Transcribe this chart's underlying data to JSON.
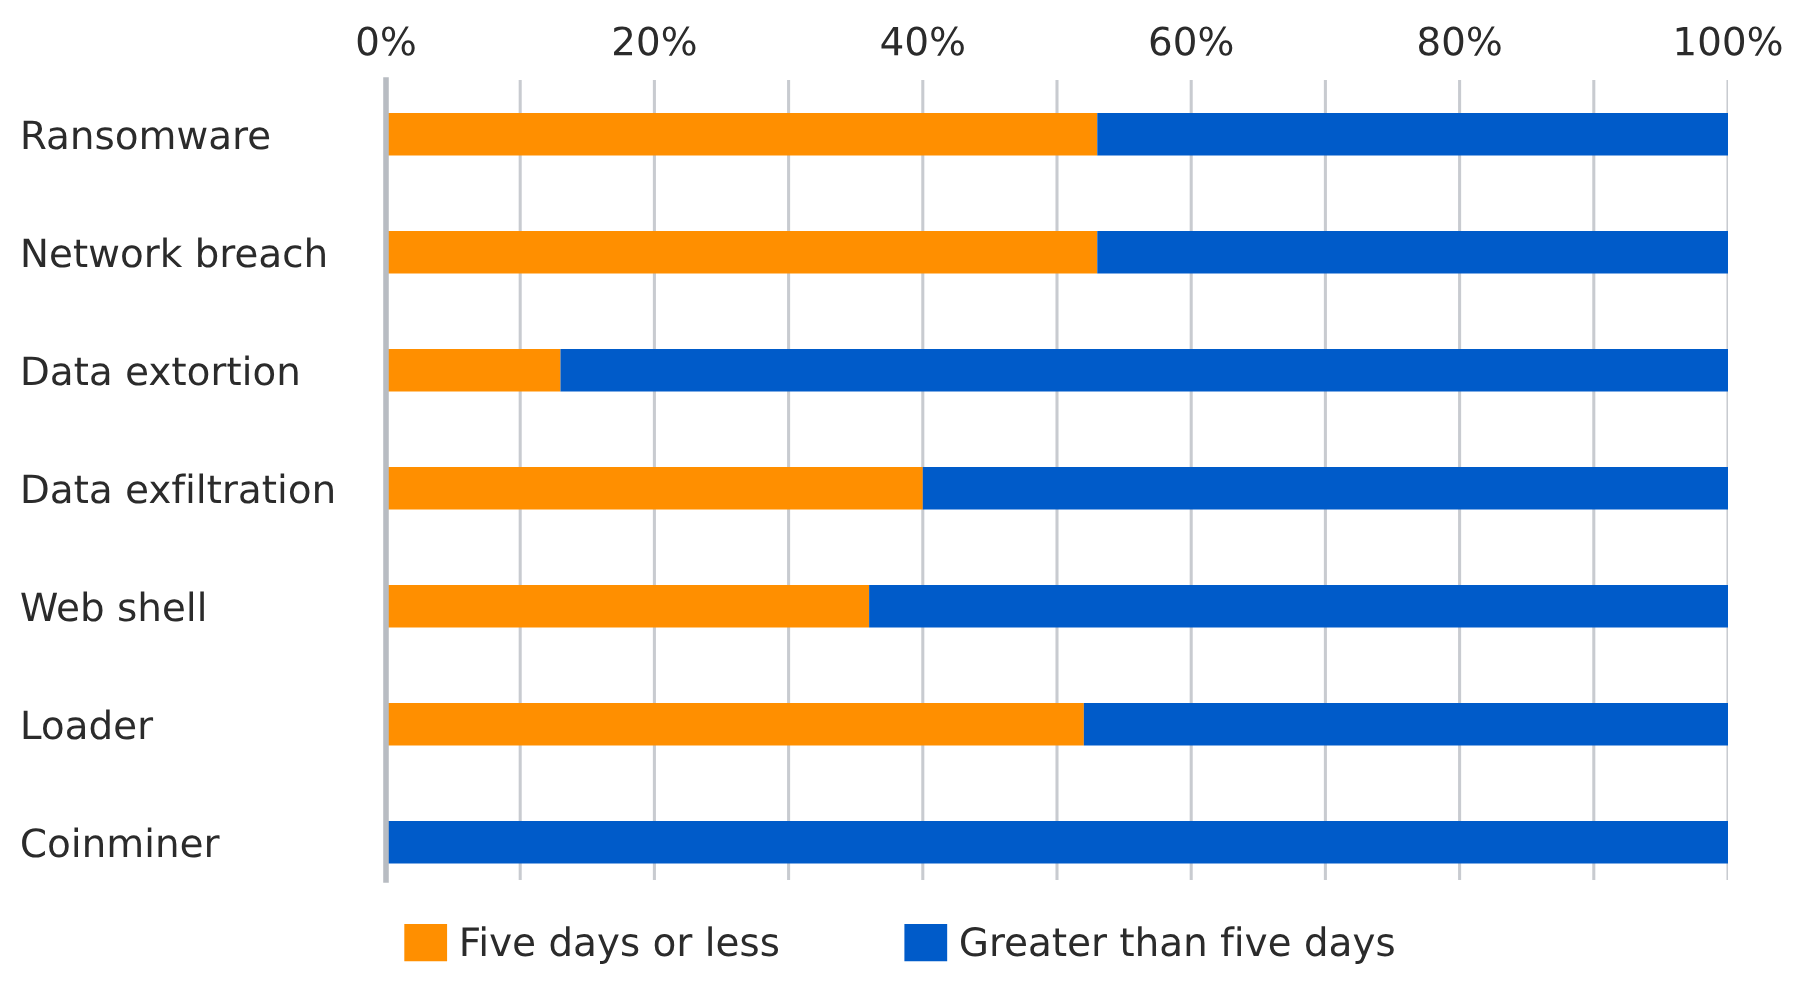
{
  "chart_data": {
    "type": "bar",
    "orientation": "horizontal",
    "stacked": true,
    "categories": [
      "Ransomware",
      "Network breach",
      "Data extortion",
      "Data exfiltration",
      "Web shell",
      "Loader",
      "Coinminer"
    ],
    "series": [
      {
        "name": "Five days or less",
        "color": "#ff8f00",
        "values": [
          53,
          53,
          13,
          40,
          36,
          52,
          0
        ]
      },
      {
        "name": "Greater than five days",
        "color": "#005bc9",
        "values": [
          47,
          47,
          87,
          60,
          64,
          48,
          100
        ]
      }
    ],
    "xlim": [
      0,
      100
    ],
    "xticks": [
      {
        "value": 0,
        "label": "0%"
      },
      {
        "value": 10,
        "label": null
      },
      {
        "value": 20,
        "label": "20%"
      },
      {
        "value": 30,
        "label": null
      },
      {
        "value": 40,
        "label": "40%"
      },
      {
        "value": 50,
        "label": null
      },
      {
        "value": 60,
        "label": "60%"
      },
      {
        "value": 70,
        "label": null
      },
      {
        "value": 80,
        "label": "80%"
      },
      {
        "value": 90,
        "label": null
      },
      {
        "value": 100,
        "label": "100%"
      }
    ],
    "grid": "x",
    "legend": "bottom"
  }
}
